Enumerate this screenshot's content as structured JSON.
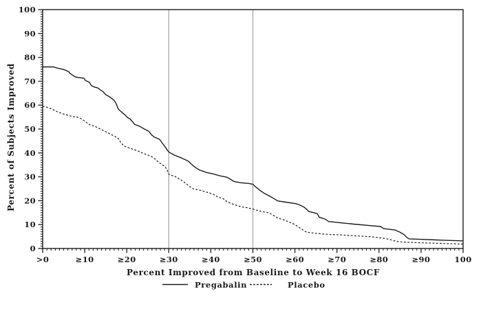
{
  "chart_data": {
    "type": "line",
    "title": "",
    "xlabel": "Percent Improved from Baseline to Week 16 BOCF",
    "ylabel": "Percent of Subjects Improved",
    "xlim": [
      0,
      100
    ],
    "ylim": [
      0,
      100
    ],
    "grid": false,
    "legend_position": "bottom",
    "axis_color": "#1a1a1a",
    "reference_line_color": "#a8a8a8",
    "reference_lines_x": [
      30,
      50
    ],
    "x_ticks": [
      {
        "v": 0,
        "label": ">0"
      },
      {
        "v": 10,
        "label": "≥10"
      },
      {
        "v": 20,
        "label": "≥20"
      },
      {
        "v": 30,
        "label": "≥30"
      },
      {
        "v": 40,
        "label": "≥40"
      },
      {
        "v": 50,
        "label": "≥50"
      },
      {
        "v": 60,
        "label": "≥60"
      },
      {
        "v": 70,
        "label": "≥70"
      },
      {
        "v": 80,
        "label": "≥80"
      },
      {
        "v": 90,
        "label": "≥90"
      },
      {
        "v": 100,
        "label": "100"
      }
    ],
    "y_ticks": [
      0,
      10,
      20,
      30,
      40,
      50,
      60,
      70,
      80,
      90,
      100
    ],
    "minor_tick_step": 1,
    "series": [
      {
        "name": "Pregabalin",
        "style": "solid",
        "color": "#1a1a1a",
        "points": [
          [
            0,
            76
          ],
          [
            2.6,
            76
          ],
          [
            3.3,
            75.6
          ],
          [
            4.3,
            75.2
          ],
          [
            5,
            74.9
          ],
          [
            5.6,
            74.5
          ],
          [
            6.2,
            74
          ],
          [
            6.6,
            73.2
          ],
          [
            7.1,
            72.6
          ],
          [
            7.7,
            71.9
          ],
          [
            8.3,
            71.6
          ],
          [
            9.8,
            71.3
          ],
          [
            10.2,
            70.3
          ],
          [
            11.1,
            69.6
          ],
          [
            11.6,
            68.2
          ],
          [
            12.1,
            67.7
          ],
          [
            13.1,
            67.2
          ],
          [
            13.8,
            66.3
          ],
          [
            14.4,
            65.6
          ],
          [
            15,
            64.4
          ],
          [
            16,
            63.4
          ],
          [
            17,
            62
          ],
          [
            17.5,
            60.6
          ],
          [
            18,
            58.3
          ],
          [
            18.7,
            57.2
          ],
          [
            19.4,
            56.2
          ],
          [
            20.2,
            54.8
          ],
          [
            20.8,
            54.2
          ],
          [
            21.4,
            53
          ],
          [
            21.9,
            51.9
          ],
          [
            23,
            51.2
          ],
          [
            24.2,
            50
          ],
          [
            25.3,
            49
          ],
          [
            25.9,
            47.6
          ],
          [
            26.5,
            46.7
          ],
          [
            27.8,
            45.7
          ],
          [
            28.6,
            43.8
          ],
          [
            29.2,
            42.4
          ],
          [
            29.7,
            41
          ],
          [
            30.1,
            40.3
          ],
          [
            31.3,
            39.1
          ],
          [
            32.9,
            38
          ],
          [
            34.6,
            36.6
          ],
          [
            35.7,
            34.8
          ],
          [
            36.5,
            33.7
          ],
          [
            37.4,
            32.8
          ],
          [
            39,
            31.8
          ],
          [
            40.6,
            31.2
          ],
          [
            42.2,
            30.4
          ],
          [
            43.9,
            29.8
          ],
          [
            44.7,
            28.9
          ],
          [
            45.6,
            28
          ],
          [
            47.2,
            27.5
          ],
          [
            49,
            27.2
          ],
          [
            50,
            26.9
          ],
          [
            50.5,
            26
          ],
          [
            51.5,
            24.6
          ],
          [
            52.6,
            23.2
          ],
          [
            53.8,
            22.1
          ],
          [
            55,
            20.9
          ],
          [
            55.9,
            19.9
          ],
          [
            57.8,
            19.4
          ],
          [
            60.1,
            18.8
          ],
          [
            60.9,
            18.4
          ],
          [
            62.1,
            17.4
          ],
          [
            62.8,
            16.4
          ],
          [
            63.3,
            15.5
          ],
          [
            65.3,
            14.6
          ],
          [
            65.8,
            13.1
          ],
          [
            67.3,
            12.2
          ],
          [
            68,
            11.3
          ],
          [
            70.6,
            10.8
          ],
          [
            74,
            10.2
          ],
          [
            77.7,
            9.6
          ],
          [
            80.4,
            9.2
          ],
          [
            81.1,
            8.3
          ],
          [
            83.7,
            7.8
          ],
          [
            84.9,
            6.9
          ],
          [
            85.9,
            5.9
          ],
          [
            86.8,
            4.4
          ],
          [
            87.2,
            4
          ],
          [
            89.1,
            3.9
          ],
          [
            94.6,
            3.5
          ],
          [
            100,
            3.2
          ]
        ]
      },
      {
        "name": "Placebo",
        "style": "dashed",
        "color": "#1a1a1a",
        "points": [
          [
            0,
            59.6
          ],
          [
            1.1,
            59.1
          ],
          [
            2.4,
            58.2
          ],
          [
            3.5,
            57.2
          ],
          [
            5.1,
            56.2
          ],
          [
            7,
            55.3
          ],
          [
            8.2,
            55
          ],
          [
            8.8,
            54.7
          ],
          [
            9.5,
            53.9
          ],
          [
            10,
            53.4
          ],
          [
            10.9,
            52
          ],
          [
            12.6,
            51
          ],
          [
            14.3,
            49.5
          ],
          [
            16,
            48
          ],
          [
            17.2,
            46.9
          ],
          [
            17.8,
            46.4
          ],
          [
            18.5,
            44.6
          ],
          [
            19.3,
            42.9
          ],
          [
            20.9,
            41.9
          ],
          [
            22.6,
            40.9
          ],
          [
            24.2,
            39.6
          ],
          [
            25.9,
            38.5
          ],
          [
            26.7,
            37.5
          ],
          [
            27.6,
            36.1
          ],
          [
            29.1,
            34.3
          ],
          [
            29.6,
            32.8
          ],
          [
            30.1,
            30.9
          ],
          [
            31.4,
            30.2
          ],
          [
            33,
            28.6
          ],
          [
            34.2,
            27
          ],
          [
            35.1,
            25.8
          ],
          [
            35.8,
            25
          ],
          [
            37.4,
            24.4
          ],
          [
            39,
            23.6
          ],
          [
            40.6,
            22.7
          ],
          [
            41.5,
            21.7
          ],
          [
            43,
            20.8
          ],
          [
            44,
            19.4
          ],
          [
            45.5,
            18.4
          ],
          [
            47.1,
            17.5
          ],
          [
            48.8,
            17
          ],
          [
            50,
            16.5
          ],
          [
            52,
            15.5
          ],
          [
            53.7,
            15
          ],
          [
            54.6,
            14.2
          ],
          [
            55.9,
            12.8
          ],
          [
            57.8,
            11.7
          ],
          [
            59.7,
            10.3
          ],
          [
            60.9,
            8.9
          ],
          [
            62.1,
            7.5
          ],
          [
            62.8,
            6.8
          ],
          [
            64.6,
            6.4
          ],
          [
            67.9,
            5.9
          ],
          [
            71.1,
            5.7
          ],
          [
            74.4,
            5.3
          ],
          [
            77.7,
            5
          ],
          [
            80,
            4.5
          ],
          [
            81.5,
            4.2
          ],
          [
            83.1,
            3.5
          ],
          [
            84.3,
            2.9
          ],
          [
            86.4,
            2.6
          ],
          [
            91.9,
            2.3
          ],
          [
            100,
            1.8
          ]
        ]
      }
    ],
    "legend": {
      "items": [
        {
          "label": "Pregabalin",
          "style": "solid"
        },
        {
          "label": "Placebo",
          "style": "dashed"
        }
      ]
    }
  }
}
